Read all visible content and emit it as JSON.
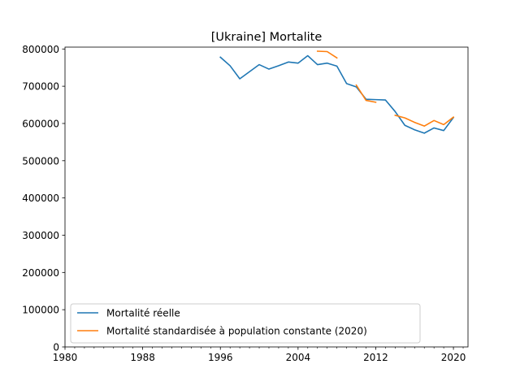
{
  "chart_data": {
    "type": "line",
    "title": "[Ukraine] Mortalite",
    "xlabel": "",
    "ylabel": "",
    "xlim": [
      1980,
      2021.5
    ],
    "ylim": [
      0,
      805000
    ],
    "x_major_ticks": [
      1980,
      1988,
      1996,
      2004,
      2012,
      2020
    ],
    "x_minor_step": 1,
    "y_ticks": [
      0,
      100000,
      200000,
      300000,
      400000,
      500000,
      600000,
      700000,
      800000
    ],
    "grid": false,
    "legend_position": "lower-left",
    "series": [
      {
        "name": "Mortalité réelle",
        "color": "#1f77b4",
        "points": [
          [
            1996,
            778000
          ],
          [
            1997,
            755000
          ],
          [
            1998,
            720000
          ],
          [
            1999,
            739000
          ],
          [
            2000,
            758000
          ],
          [
            2001,
            746000
          ],
          [
            2002,
            755000
          ],
          [
            2003,
            765000
          ],
          [
            2004,
            762000
          ],
          [
            2005,
            782000
          ],
          [
            2006,
            758000
          ],
          [
            2007,
            762000
          ],
          [
            2008,
            754000
          ],
          [
            2009,
            707000
          ],
          [
            2010,
            698000
          ],
          [
            2011,
            665000
          ],
          [
            2012,
            664000
          ],
          [
            2013,
            663000
          ],
          [
            2014,
            632000
          ],
          [
            2015,
            595000
          ],
          [
            2016,
            583000
          ],
          [
            2017,
            574000
          ],
          [
            2018,
            588000
          ],
          [
            2019,
            581000
          ],
          [
            2020,
            616000
          ]
        ]
      },
      {
        "name": "Mortalité standardisée à population constante (2020)",
        "color": "#ff7f0e",
        "segments": [
          [
            [
              2006,
              794000
            ],
            [
              2007,
              793000
            ],
            [
              2008,
              776000
            ]
          ],
          [
            [
              2010,
              703000
            ],
            [
              2011,
              662000
            ],
            [
              2012,
              657000
            ]
          ],
          [
            [
              2014,
              622000
            ],
            [
              2015,
              615000
            ],
            [
              2016,
              603000
            ],
            [
              2017,
              593000
            ],
            [
              2018,
              608000
            ],
            [
              2019,
              597000
            ],
            [
              2020,
              617000
            ]
          ]
        ]
      }
    ]
  }
}
